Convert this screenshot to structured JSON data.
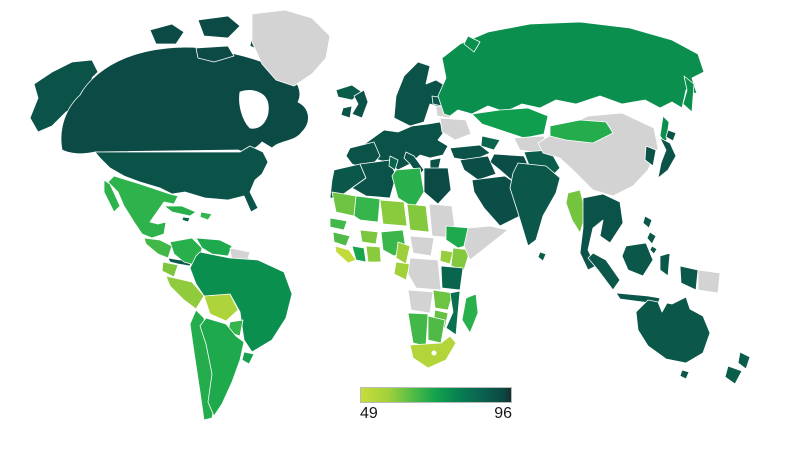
{
  "chart_data": {
    "type": "heatmap",
    "subtype": "choropleth-world-map",
    "title": "",
    "legend": {
      "min": 49,
      "max": 96,
      "min_label": "49",
      "max_label": "96",
      "no_data_color": "#d3d3d3",
      "gradient_stops": [
        {
          "offset": 0,
          "color": "#c8dc3b"
        },
        {
          "offset": 18,
          "color": "#a3d13b"
        },
        {
          "offset": 35,
          "color": "#4fbc46"
        },
        {
          "offset": 50,
          "color": "#12a24d"
        },
        {
          "offset": 65,
          "color": "#088050"
        },
        {
          "offset": 80,
          "color": "#0a6350"
        },
        {
          "offset": 95,
          "color": "#0c4843"
        },
        {
          "offset": 100,
          "color": "#14302c"
        }
      ]
    },
    "scale_stops": [
      {
        "value": 49,
        "color": "#c8dc3b"
      },
      {
        "value": 55,
        "color": "#a8d23a"
      },
      {
        "value": 61,
        "color": "#84c83e"
      },
      {
        "value": 67,
        "color": "#55bd45"
      },
      {
        "value": 73,
        "color": "#2eb34c"
      },
      {
        "value": 79,
        "color": "#0f9e4e"
      },
      {
        "value": 84,
        "color": "#088550"
      },
      {
        "value": 89,
        "color": "#0a6950"
      },
      {
        "value": 96,
        "color": "#0b4a45"
      }
    ],
    "regions": {
      "canada": {
        "name": "Canada",
        "value": 96
      },
      "usa": {
        "name": "United States",
        "value": 94
      },
      "alaska": {
        "name": "Alaska (United States)",
        "value": 94
      },
      "greenland": {
        "name": "Greenland",
        "value": null
      },
      "mexico": {
        "name": "Mexico",
        "value": 73
      },
      "central-america": {
        "name": "Central America",
        "value": 70
      },
      "costa-rica-panama": {
        "name": "Costa Rica / Panama",
        "value": 93
      },
      "cuba": {
        "name": "Cuba",
        "value": 74
      },
      "hispaniola": {
        "name": "Hispaniola",
        "value": 72
      },
      "jamaica": {
        "name": "Jamaica",
        "value": 90
      },
      "colombia": {
        "name": "Colombia",
        "value": 74
      },
      "venezuela": {
        "name": "Venezuela",
        "value": 76
      },
      "guyana-suriname": {
        "name": "Guyana / Suriname",
        "value": null
      },
      "ecuador": {
        "name": "Ecuador",
        "value": 62
      },
      "peru": {
        "name": "Peru",
        "value": 59
      },
      "bolivia": {
        "name": "Bolivia",
        "value": 54
      },
      "brazil": {
        "name": "Brazil",
        "value": 82
      },
      "paraguay": {
        "name": "Paraguay",
        "value": 72
      },
      "uruguay": {
        "name": "Uruguay",
        "value": 78
      },
      "chile": {
        "name": "Chile",
        "value": 75
      },
      "argentina": {
        "name": "Argentina",
        "value": 76
      },
      "iceland": {
        "name": "Iceland",
        "value": 92
      },
      "united-kingdom": {
        "name": "United Kingdom",
        "value": 94
      },
      "ireland": {
        "name": "Ireland",
        "value": 94
      },
      "scandinavia": {
        "name": "Scandinavia / Finland",
        "value": 94
      },
      "europe-mainland": {
        "name": "Central & Western Europe",
        "value": 94
      },
      "iberia": {
        "name": "Spain / Portugal",
        "value": 94
      },
      "italy": {
        "name": "Italy",
        "value": 94
      },
      "greece": {
        "name": "Greece",
        "value": 94
      },
      "baltics": {
        "name": "Baltic States",
        "value": 93
      },
      "belarus": {
        "name": "Belarus",
        "value": null
      },
      "ukraine": {
        "name": "Ukraine",
        "value": null
      },
      "turkey": {
        "name": "Turkey",
        "value": 94
      },
      "caucasus": {
        "name": "Caucasus",
        "value": 90
      },
      "russia": {
        "name": "Russia",
        "value": 82
      },
      "kazakhstan": {
        "name": "Kazakhstan",
        "value": 79
      },
      "turkmenistan-uzbekistan": {
        "name": "Turkmenistan / Uzbekistan",
        "value": null
      },
      "afghanistan-pakistan": {
        "name": "Afghanistan / Pakistan",
        "value": 92
      },
      "iran": {
        "name": "Iran",
        "value": 95
      },
      "iraq-levant": {
        "name": "Iraq / Levant",
        "value": 95
      },
      "saudi-arabia": {
        "name": "Arabian Peninsula",
        "value": 95
      },
      "morocco": {
        "name": "Morocco / W. Sahara",
        "value": 93
      },
      "algeria": {
        "name": "Algeria",
        "value": 94
      },
      "tunisia": {
        "name": "Tunisia",
        "value": 90
      },
      "libya": {
        "name": "Libya",
        "value": 74
      },
      "egypt": {
        "name": "Egypt",
        "value": 96
      },
      "mauritania": {
        "name": "Mauritania",
        "value": 64
      },
      "mali": {
        "name": "Mali",
        "value": 72
      },
      "niger": {
        "name": "Niger",
        "value": 60
      },
      "chad": {
        "name": "Chad",
        "value": 61
      },
      "sudan": {
        "name": "Sudan",
        "value": null
      },
      "senegal": {
        "name": "Senegal",
        "value": 70
      },
      "guinea": {
        "name": "Guinea",
        "value": 68
      },
      "sierra-leone-liberia": {
        "name": "Sierra Leone / Liberia",
        "value": 50
      },
      "ivory-coast": {
        "name": "Côte d'Ivoire",
        "value": 77
      },
      "burkina-faso": {
        "name": "Burkina Faso",
        "value": 62
      },
      "ghana-togo-benin": {
        "name": "Ghana / Togo / Benin",
        "value": 60
      },
      "nigeria": {
        "name": "Nigeria",
        "value": 71
      },
      "cameroon": {
        "name": "Cameroon",
        "value": 57
      },
      "central-african-republic": {
        "name": "Central African Rep.",
        "value": null
      },
      "gabon-congo": {
        "name": "Gabon / Congo",
        "value": 56
      },
      "dr-congo": {
        "name": "DR Congo",
        "value": null
      },
      "uganda": {
        "name": "Uganda",
        "value": 58
      },
      "kenya": {
        "name": "Kenya",
        "value": 61
      },
      "ethiopia": {
        "name": "Ethiopia",
        "value": 76
      },
      "somalia": {
        "name": "Somalia",
        "value": null
      },
      "tanzania": {
        "name": "Tanzania",
        "value": 90
      },
      "angola": {
        "name": "Angola",
        "value": null
      },
      "zambia": {
        "name": "Zambia",
        "value": 64
      },
      "mozambique": {
        "name": "Mozambique",
        "value": 88
      },
      "zimbabwe": {
        "name": "Zimbabwe",
        "value": 65
      },
      "namibia": {
        "name": "Namibia",
        "value": 70
      },
      "botswana": {
        "name": "Botswana",
        "value": 68
      },
      "south-africa": {
        "name": "South Africa",
        "value": 53
      },
      "madagascar": {
        "name": "Madagascar",
        "value": 74
      },
      "india": {
        "name": "India",
        "value": 93
      },
      "sri-lanka": {
        "name": "Sri Lanka",
        "value": 92
      },
      "china": {
        "name": "China",
        "value": null
      },
      "mongolia": {
        "name": "Mongolia",
        "value": 75
      },
      "myanmar": {
        "name": "Myanmar",
        "value": 63
      },
      "indochina": {
        "name": "Thailand / Indochina",
        "value": 94
      },
      "korea": {
        "name": "Korea",
        "value": 94
      },
      "japan": {
        "name": "Japan",
        "value": 94
      },
      "philippines": {
        "name": "Philippines",
        "value": 93
      },
      "borneo": {
        "name": "Borneo (Indonesia/Malaysia)",
        "value": 93
      },
      "sumatra": {
        "name": "Sumatra (Indonesia)",
        "value": 93
      },
      "java": {
        "name": "Java (Indonesia)",
        "value": 93
      },
      "sulawesi": {
        "name": "Sulawesi (Indonesia)",
        "value": 93
      },
      "west-new-guinea": {
        "name": "West New Guinea (Indonesia)",
        "value": 93
      },
      "papua-new-guinea": {
        "name": "Papua New Guinea",
        "value": null
      },
      "australia": {
        "name": "Australia",
        "value": 93
      },
      "tasmania": {
        "name": "Tasmania (Australia)",
        "value": 93
      },
      "new-zealand": {
        "name": "New Zealand",
        "value": 92
      }
    }
  }
}
